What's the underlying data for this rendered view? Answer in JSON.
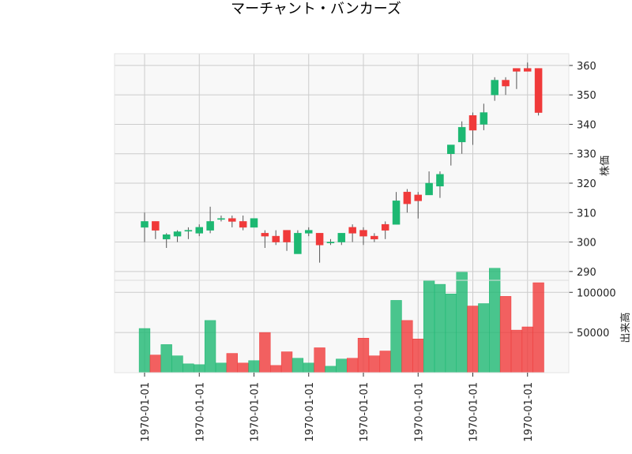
{
  "chart_data": {
    "type": "candlestick",
    "title": "マーチャント・バンカーズ",
    "price_axis_label": "株価",
    "volume_axis_label": "出来高",
    "price_ylim": [
      287,
      364
    ],
    "price_ticks": [
      "290",
      "300",
      "310",
      "320",
      "330",
      "340",
      "350",
      "360"
    ],
    "volume_ylim": [
      0,
      115000
    ],
    "volume_ticks": [
      "50000",
      "100000"
    ],
    "x_tick_labels": [
      "1970-01-01",
      "1970-01-01",
      "1970-01-01",
      "1970-01-01",
      "1970-01-01",
      "1970-01-01",
      "1970-01-01",
      "1970-01-01"
    ],
    "up_color": "#1db872",
    "down_color": "#f03a3a",
    "candles": [
      {
        "open": 305.0,
        "high": 310.0,
        "low": 300.0,
        "close": 307.0,
        "volume": 55000
      },
      {
        "open": 307.0,
        "high": 307.0,
        "low": 301.0,
        "close": 304.0,
        "volume": 22000
      },
      {
        "open": 301.0,
        "high": 303.0,
        "low": 298.0,
        "close": 302.5,
        "volume": 35000
      },
      {
        "open": 302.0,
        "high": 304.0,
        "low": 300.0,
        "close": 303.5,
        "volume": 21000
      },
      {
        "open": 304.0,
        "high": 305.0,
        "low": 301.0,
        "close": 304.0,
        "volume": 11000
      },
      {
        "open": 303.0,
        "high": 306.0,
        "low": 302.0,
        "close": 305.0,
        "volume": 10000
      },
      {
        "open": 304.0,
        "high": 312.0,
        "low": 303.0,
        "close": 307.0,
        "volume": 65000
      },
      {
        "open": 308.0,
        "high": 309.0,
        "low": 307.0,
        "close": 308.0,
        "volume": 12000
      },
      {
        "open": 308.0,
        "high": 309.0,
        "low": 305.0,
        "close": 307.0,
        "volume": 24000
      },
      {
        "open": 307.0,
        "high": 309.0,
        "low": 304.0,
        "close": 305.0,
        "volume": 12000
      },
      {
        "open": 305.0,
        "high": 308.0,
        "low": 305.0,
        "close": 308.0,
        "volume": 15000
      },
      {
        "open": 303.0,
        "high": 304.0,
        "low": 298.0,
        "close": 302.0,
        "volume": 50000
      },
      {
        "open": 302.0,
        "high": 304.0,
        "low": 299.0,
        "close": 300.0,
        "volume": 9000
      },
      {
        "open": 304.0,
        "high": 304.0,
        "low": 297.0,
        "close": 300.0,
        "volume": 26000
      },
      {
        "open": 296.0,
        "high": 304.0,
        "low": 296.0,
        "close": 303.0,
        "volume": 18000
      },
      {
        "open": 303.0,
        "high": 305.0,
        "low": 302.0,
        "close": 304.0,
        "volume": 12000
      },
      {
        "open": 303.0,
        "high": 303.0,
        "low": 293.0,
        "close": 299.0,
        "volume": 31000
      },
      {
        "open": 300.0,
        "high": 301.0,
        "low": 299.0,
        "close": 300.0,
        "volume": 8000
      },
      {
        "open": 300.0,
        "high": 303.0,
        "low": 299.0,
        "close": 303.0,
        "volume": 17000
      },
      {
        "open": 305.0,
        "high": 306.0,
        "low": 300.0,
        "close": 303.0,
        "volume": 18000
      },
      {
        "open": 304.0,
        "high": 305.0,
        "low": 299.0,
        "close": 302.0,
        "volume": 43000
      },
      {
        "open": 302.0,
        "high": 303.0,
        "low": 300.0,
        "close": 301.0,
        "volume": 21000
      },
      {
        "open": 306.0,
        "high": 307.0,
        "low": 301.0,
        "close": 304.0,
        "volume": 27000
      },
      {
        "open": 306.0,
        "high": 317.0,
        "low": 306.0,
        "close": 314.0,
        "volume": 90000
      },
      {
        "open": 317.0,
        "high": 318.0,
        "low": 310.0,
        "close": 313.0,
        "volume": 65000
      },
      {
        "open": 316.0,
        "high": 317.0,
        "low": 308.0,
        "close": 314.0,
        "volume": 42000
      },
      {
        "open": 316.0,
        "high": 324.0,
        "low": 316.0,
        "close": 320.0,
        "volume": 115000
      },
      {
        "open": 319.0,
        "high": 324.0,
        "low": 315.0,
        "close": 323.0,
        "volume": 110000
      },
      {
        "open": 330.0,
        "high": 333.0,
        "low": 326.0,
        "close": 333.0,
        "volume": 98000
      },
      {
        "open": 334.0,
        "high": 341.0,
        "low": 330.0,
        "close": 339.0,
        "volume": 125000
      },
      {
        "open": 343.0,
        "high": 344.0,
        "low": 333.0,
        "close": 338.0,
        "volume": 83000
      },
      {
        "open": 340.0,
        "high": 347.0,
        "low": 338.0,
        "close": 344.0,
        "volume": 86000
      },
      {
        "open": 350.0,
        "high": 356.0,
        "low": 348.0,
        "close": 355.0,
        "volume": 130000
      },
      {
        "open": 355.0,
        "high": 356.0,
        "low": 350.0,
        "close": 353.0,
        "volume": 95000
      },
      {
        "open": 359.0,
        "high": 359.0,
        "low": 352.0,
        "close": 358.0,
        "volume": 53000
      },
      {
        "open": 359.0,
        "high": 361.0,
        "low": 358.0,
        "close": 358.0,
        "volume": 57000
      },
      {
        "open": 359.0,
        "high": 359.0,
        "low": 343.0,
        "close": 344.0,
        "volume": 112000
      }
    ]
  }
}
